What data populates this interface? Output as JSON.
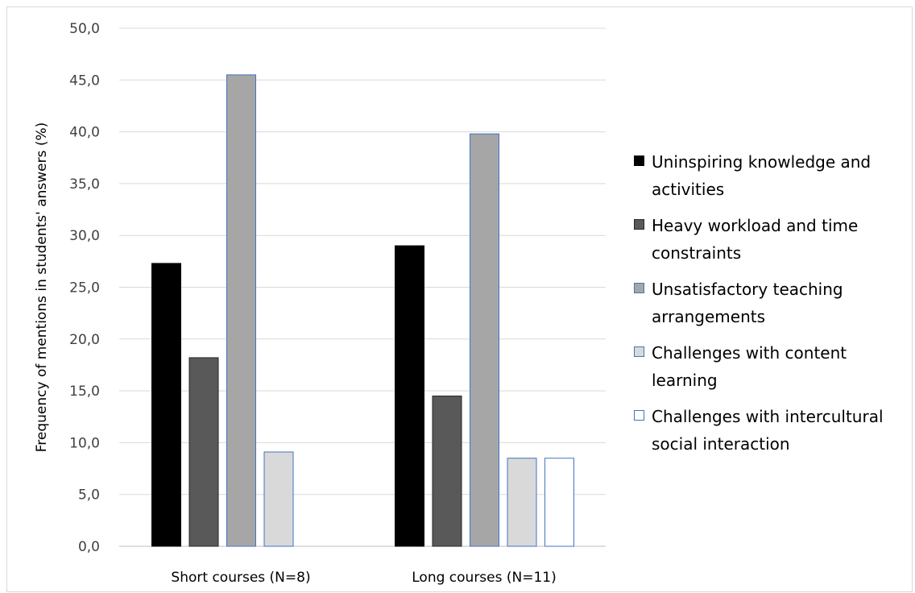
{
  "chart_data": {
    "type": "bar",
    "ylabel": "Frequency of mentions in students' answers (%)",
    "ylim": [
      0,
      50
    ],
    "y_ticks": [
      "0,0",
      "5,0",
      "10,0",
      "15,0",
      "20,0",
      "25,0",
      "30,0",
      "35,0",
      "40,0",
      "45,0",
      "50,0"
    ],
    "categories": [
      "Short courses (N=8)",
      "Long courses (N=11)"
    ],
    "grid": true,
    "legend_position": "right",
    "series": [
      {
        "name": "Uninspiring knowledge and activities",
        "values": [
          27.3,
          29.0
        ],
        "color": "#000000",
        "border": "#000000"
      },
      {
        "name": "Heavy workload and time constraints",
        "values": [
          18.2,
          14.5
        ],
        "color": "#595959",
        "border": "#262626"
      },
      {
        "name": "Unsatisfactory teaching arrangements",
        "values": [
          45.5,
          39.8
        ],
        "color": "#a6a6a6",
        "border": "#4472c4"
      },
      {
        "name": "Challenges with content learning",
        "values": [
          9.1,
          8.5
        ],
        "color": "#d9d9d9",
        "border": "#4472c4"
      },
      {
        "name": "Challenges with intercultural social interaction",
        "values": [
          0,
          8.5
        ],
        "color": "#ffffff",
        "border": "#4472c4"
      }
    ]
  }
}
